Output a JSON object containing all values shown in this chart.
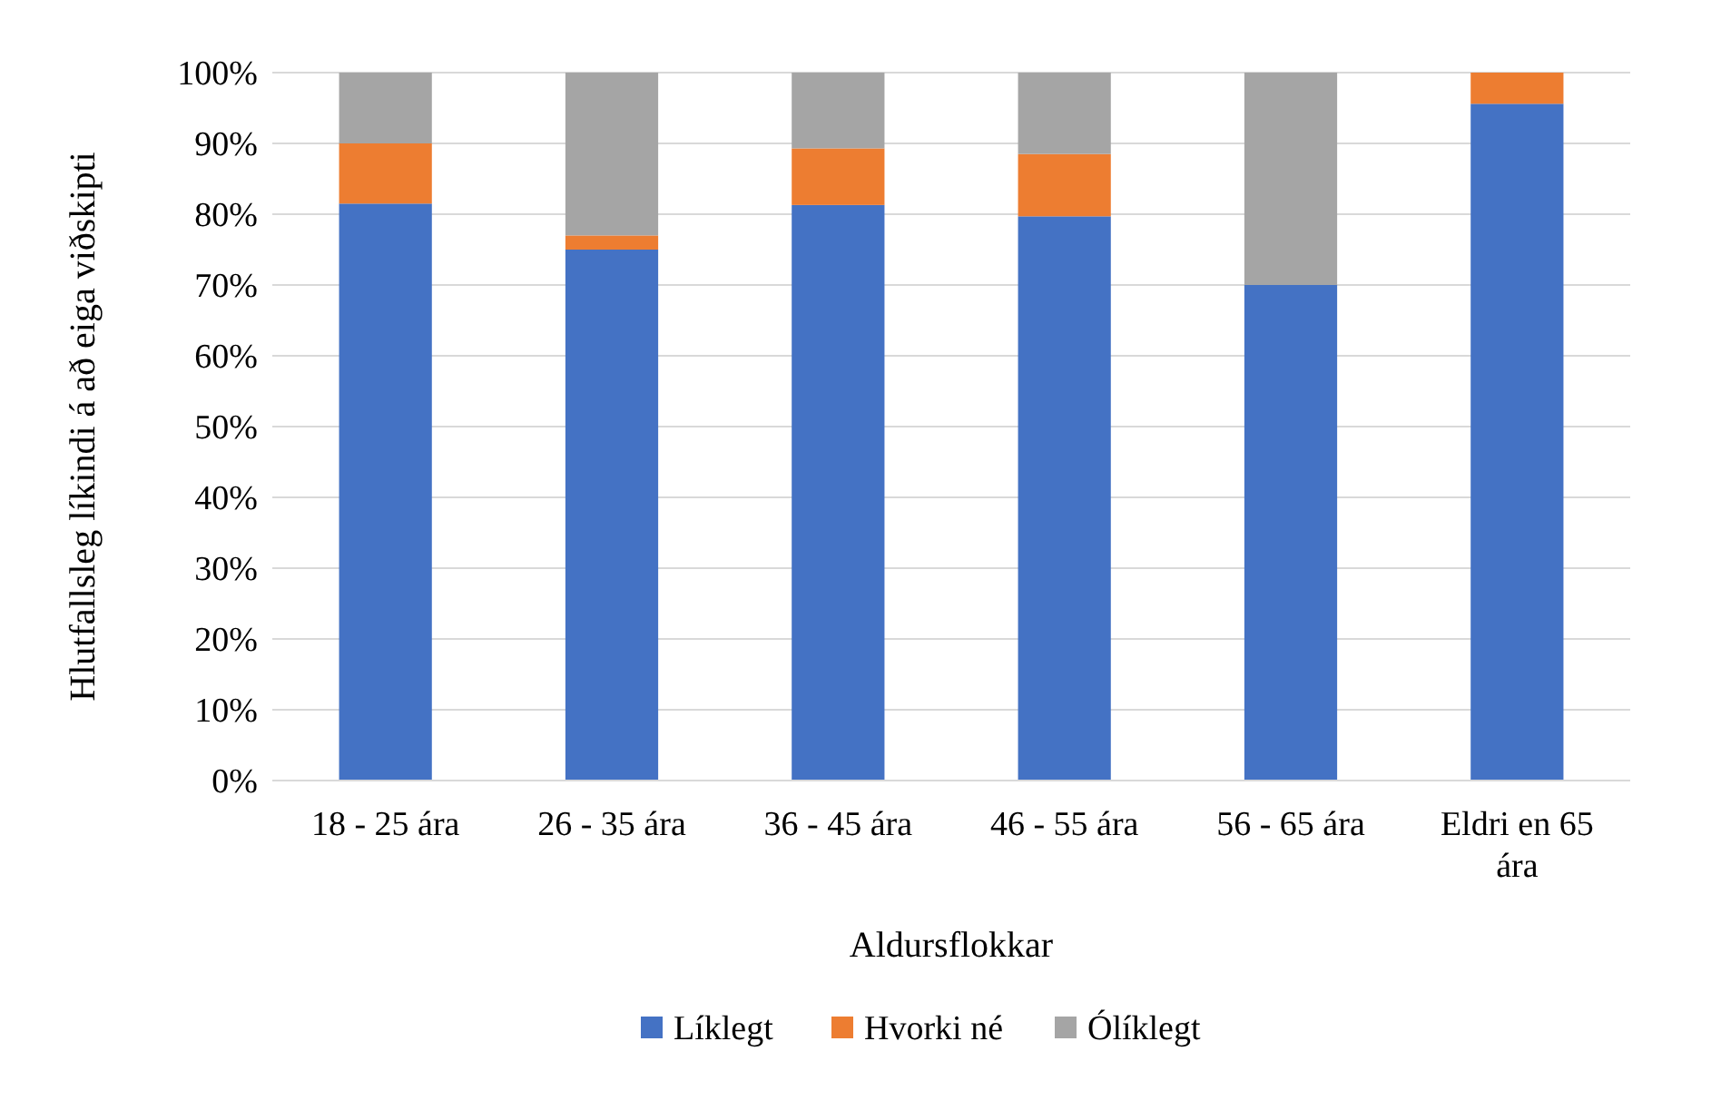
{
  "chart_data": {
    "type": "bar",
    "stacked": true,
    "categories": [
      "18 - 25 ára",
      "26 - 35 ára",
      "36 - 45 ára",
      "46 - 55 ára",
      "56 - 65 ára",
      "Eldri en 65 ára"
    ],
    "series": [
      {
        "name": "Líklegt",
        "color": "#4472c4",
        "values": [
          81.5,
          75,
          81.3,
          79.7,
          70,
          95.6
        ]
      },
      {
        "name": "Hvorki né",
        "color": "#ed7d31",
        "values": [
          8.5,
          2,
          8,
          8.8,
          0,
          4.4
        ]
      },
      {
        "name": "Ólíklegt",
        "color": "#a5a5a5",
        "values": [
          10,
          23,
          10.7,
          11.5,
          30,
          0
        ]
      }
    ],
    "xlabel": "Aldursflokkar",
    "ylabel": "Hlutfallsleg líkindi á að eiga viðskipti",
    "ylim": [
      0,
      100
    ],
    "yticks": [
      {
        "value": 0,
        "label": "0%"
      },
      {
        "value": 10,
        "label": "10%"
      },
      {
        "value": 20,
        "label": "20%"
      },
      {
        "value": 30,
        "label": "30%"
      },
      {
        "value": 40,
        "label": "40%"
      },
      {
        "value": 50,
        "label": "50%"
      },
      {
        "value": 60,
        "label": "60%"
      },
      {
        "value": 70,
        "label": "70%"
      },
      {
        "value": 80,
        "label": "80%"
      },
      {
        "value": 90,
        "label": "90%"
      },
      {
        "value": 100,
        "label": "100%"
      }
    ],
    "grid": "y",
    "legend": "bottom"
  }
}
